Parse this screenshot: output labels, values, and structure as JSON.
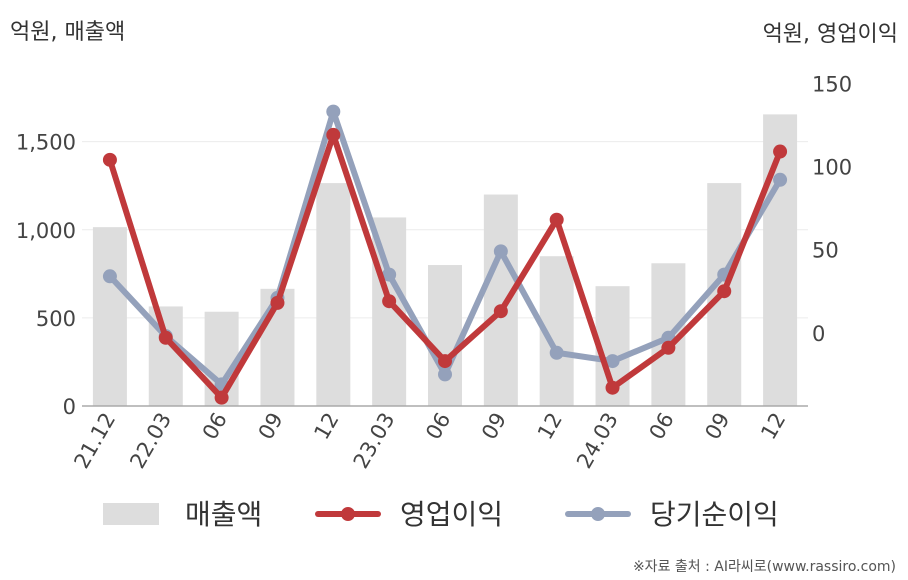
{
  "header": {
    "left_unit": "억원, 매출액",
    "right_unit": "억원, 영업이익"
  },
  "source": "※자료 출처 : AI라씨로(www.rassiro.com)",
  "chart_data": {
    "type": "bar+line",
    "categories": [
      "21.12",
      "22.03",
      "06",
      "09",
      "12",
      "23.03",
      "06",
      "09",
      "12",
      "24.03",
      "06",
      "09",
      "12"
    ],
    "series": [
      {
        "name": "매출액",
        "type": "bar",
        "axis": "left",
        "color": "#dddddd",
        "values": [
          1015,
          565,
          535,
          665,
          1265,
          1070,
          800,
          1200,
          850,
          680,
          810,
          1265,
          1655
        ]
      },
      {
        "name": "영업이익",
        "type": "line",
        "axis": "right",
        "color": "#c0393b",
        "values": [
          104,
          -3,
          -39,
          18,
          119,
          19,
          -17,
          13,
          68,
          -33,
          -9,
          25,
          109
        ]
      },
      {
        "name": "당기순이익",
        "type": "line",
        "axis": "right",
        "color": "#94a1bb",
        "values": [
          34,
          -2,
          -31,
          21,
          133,
          35,
          -25,
          49,
          -12,
          -17,
          -3,
          35,
          92
        ]
      }
    ],
    "y_left": {
      "range": [
        0,
        1850
      ],
      "ticks": [
        0,
        500,
        1000,
        1500
      ],
      "tick_labels": [
        "0",
        "500",
        "1,000",
        "1,500"
      ]
    },
    "y_right": {
      "range": [
        -44,
        152
      ],
      "ticks": [
        0,
        50,
        100,
        150
      ],
      "tick_labels": [
        "0",
        "50",
        "100",
        "150"
      ]
    },
    "grid": true,
    "legend_position": "bottom"
  }
}
